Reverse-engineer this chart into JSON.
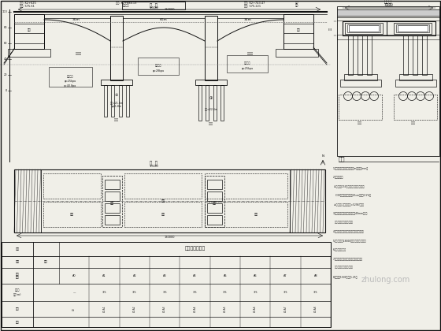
{
  "bg_color": "#f0efe8",
  "line_color": "#111111",
  "watermark": "zhulong.com"
}
